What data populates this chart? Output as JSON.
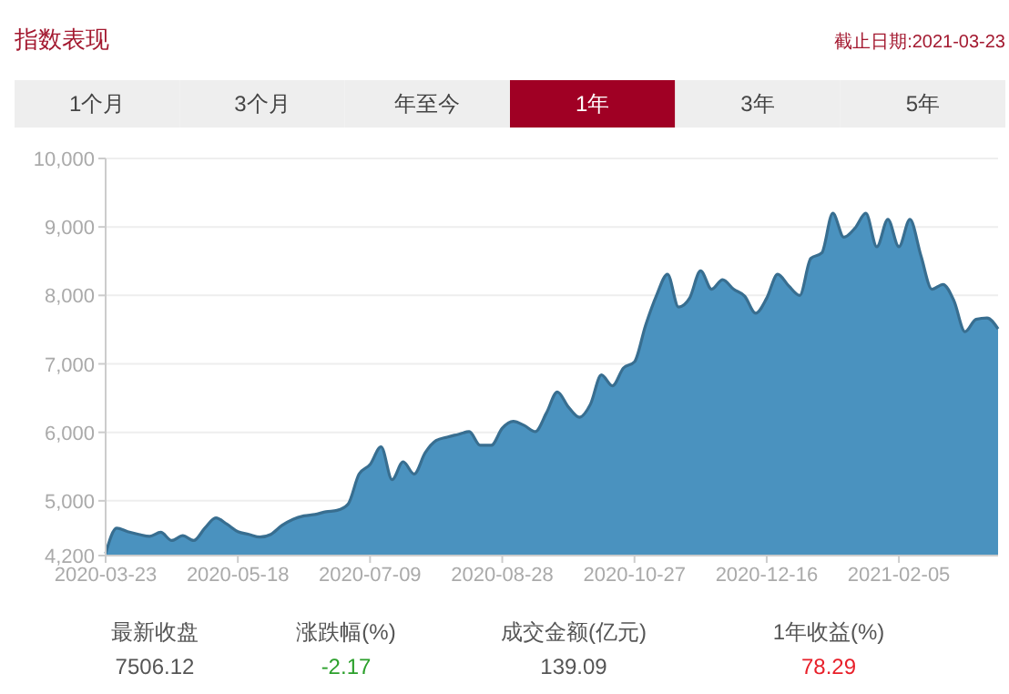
{
  "chart_data": {
    "type": "area",
    "title": "指数表现",
    "subtitle": "截止日期:2021-03-23",
    "annotations": [
      "1个月",
      "3个月",
      "年至今",
      "1年",
      "3年",
      "5年",
      "最新收盘",
      "7506.12",
      "涨跌幅(%)",
      "-2.17",
      "成交金额(亿元)",
      "139.09",
      "1年收益(%)",
      "78.29"
    ],
    "categories": [
      "2020-03-23",
      null,
      null,
      null,
      null,
      null,
      null,
      null,
      null,
      null,
      null,
      null,
      "2020-05-18",
      null,
      null,
      null,
      null,
      null,
      null,
      null,
      null,
      null,
      null,
      null,
      "2020-07-09",
      null,
      null,
      null,
      null,
      null,
      null,
      null,
      null,
      null,
      null,
      null,
      "2020-08-28",
      null,
      null,
      null,
      null,
      null,
      null,
      null,
      null,
      null,
      null,
      null,
      "2020-10-27",
      null,
      null,
      null,
      null,
      null,
      null,
      null,
      null,
      null,
      null,
      null,
      "2020-12-16",
      null,
      null,
      null,
      null,
      null,
      null,
      null,
      null,
      null,
      null,
      null,
      "2021-02-05",
      null,
      null,
      null,
      null,
      null,
      null,
      null,
      null,
      null
    ],
    "series": [
      {
        "color": "#4a92bf",
        "values": [
          4230,
          4600,
          4550,
          4510,
          4480,
          4540,
          4420,
          4490,
          4420,
          4600,
          4750,
          4660,
          4550,
          4510,
          4470,
          4510,
          4640,
          4730,
          4780,
          4800,
          4840,
          4860,
          4950,
          5390,
          5530,
          5790,
          5310,
          5570,
          5390,
          5700,
          5880,
          5930,
          5970,
          6010,
          5810,
          5810,
          6060,
          6160,
          6100,
          6010,
          6280,
          6590,
          6370,
          6220,
          6410,
          6840,
          6680,
          6940,
          7030,
          7560,
          8000,
          8310,
          7830,
          7960,
          8360,
          8090,
          8230,
          8090,
          7990,
          7740,
          7960,
          8310,
          8140,
          8000,
          8540,
          8620,
          9200,
          8850,
          8980,
          9200,
          8710,
          9110,
          8710,
          9110,
          8580,
          8090,
          8160,
          7920,
          7470,
          7650,
          7670,
          7510
        ]
      }
    ],
    "ylim": [
      4200,
      10000
    ],
    "yticks": [
      {
        "value": 4200,
        "label": "4,200"
      },
      {
        "value": 5000,
        "label": "5,000"
      },
      {
        "value": 6000,
        "label": "6,000"
      },
      {
        "value": 7000,
        "label": "7,000"
      },
      {
        "value": 8000,
        "label": "8,000"
      },
      {
        "value": 9000,
        "label": "9,000"
      },
      {
        "value": 10000,
        "label": "10,000"
      }
    ],
    "grid": "y"
  }
}
